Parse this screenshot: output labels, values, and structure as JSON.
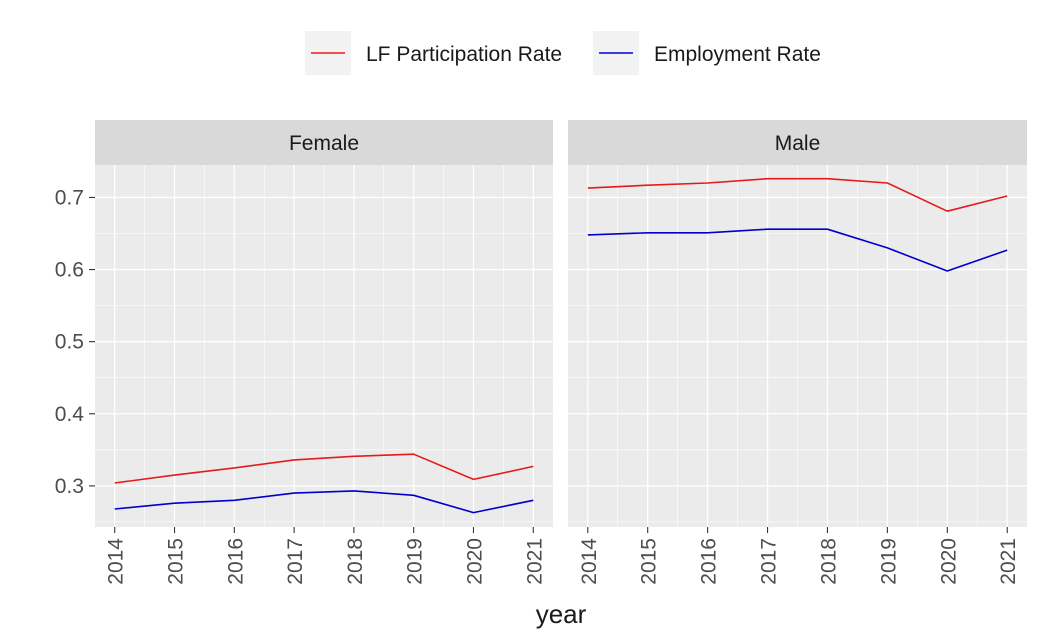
{
  "chart_data": {
    "type": "line",
    "xlabel": "year",
    "ylabel": "",
    "x": [
      2014,
      2015,
      2016,
      2017,
      2018,
      2019,
      2020,
      2021
    ],
    "y_ticks": [
      0.3,
      0.4,
      0.5,
      0.6,
      0.7
    ],
    "xlim": [
      2013.67,
      2021.33
    ],
    "ylim": [
      0.243,
      0.745
    ],
    "grid": true,
    "legend_position": "top",
    "series_meta": [
      {
        "name": "LF Participation Rate",
        "color": "#e41a1c"
      },
      {
        "name": "Employment Rate",
        "color": "#0000cc"
      }
    ],
    "panels": [
      {
        "label": "Female",
        "series": [
          {
            "name": "LF Participation Rate",
            "values": [
              0.304,
              0.315,
              0.325,
              0.336,
              0.341,
              0.344,
              0.309,
              0.327
            ]
          },
          {
            "name": "Employment Rate",
            "values": [
              0.268,
              0.276,
              0.28,
              0.29,
              0.293,
              0.287,
              0.263,
              0.28
            ]
          }
        ]
      },
      {
        "label": "Male",
        "series": [
          {
            "name": "LF Participation Rate",
            "values": [
              0.713,
              0.717,
              0.72,
              0.726,
              0.726,
              0.72,
              0.681,
              0.702
            ]
          },
          {
            "name": "Employment Rate",
            "values": [
              0.648,
              0.651,
              0.651,
              0.656,
              0.656,
              0.63,
              0.598,
              0.627
            ]
          }
        ]
      }
    ]
  }
}
